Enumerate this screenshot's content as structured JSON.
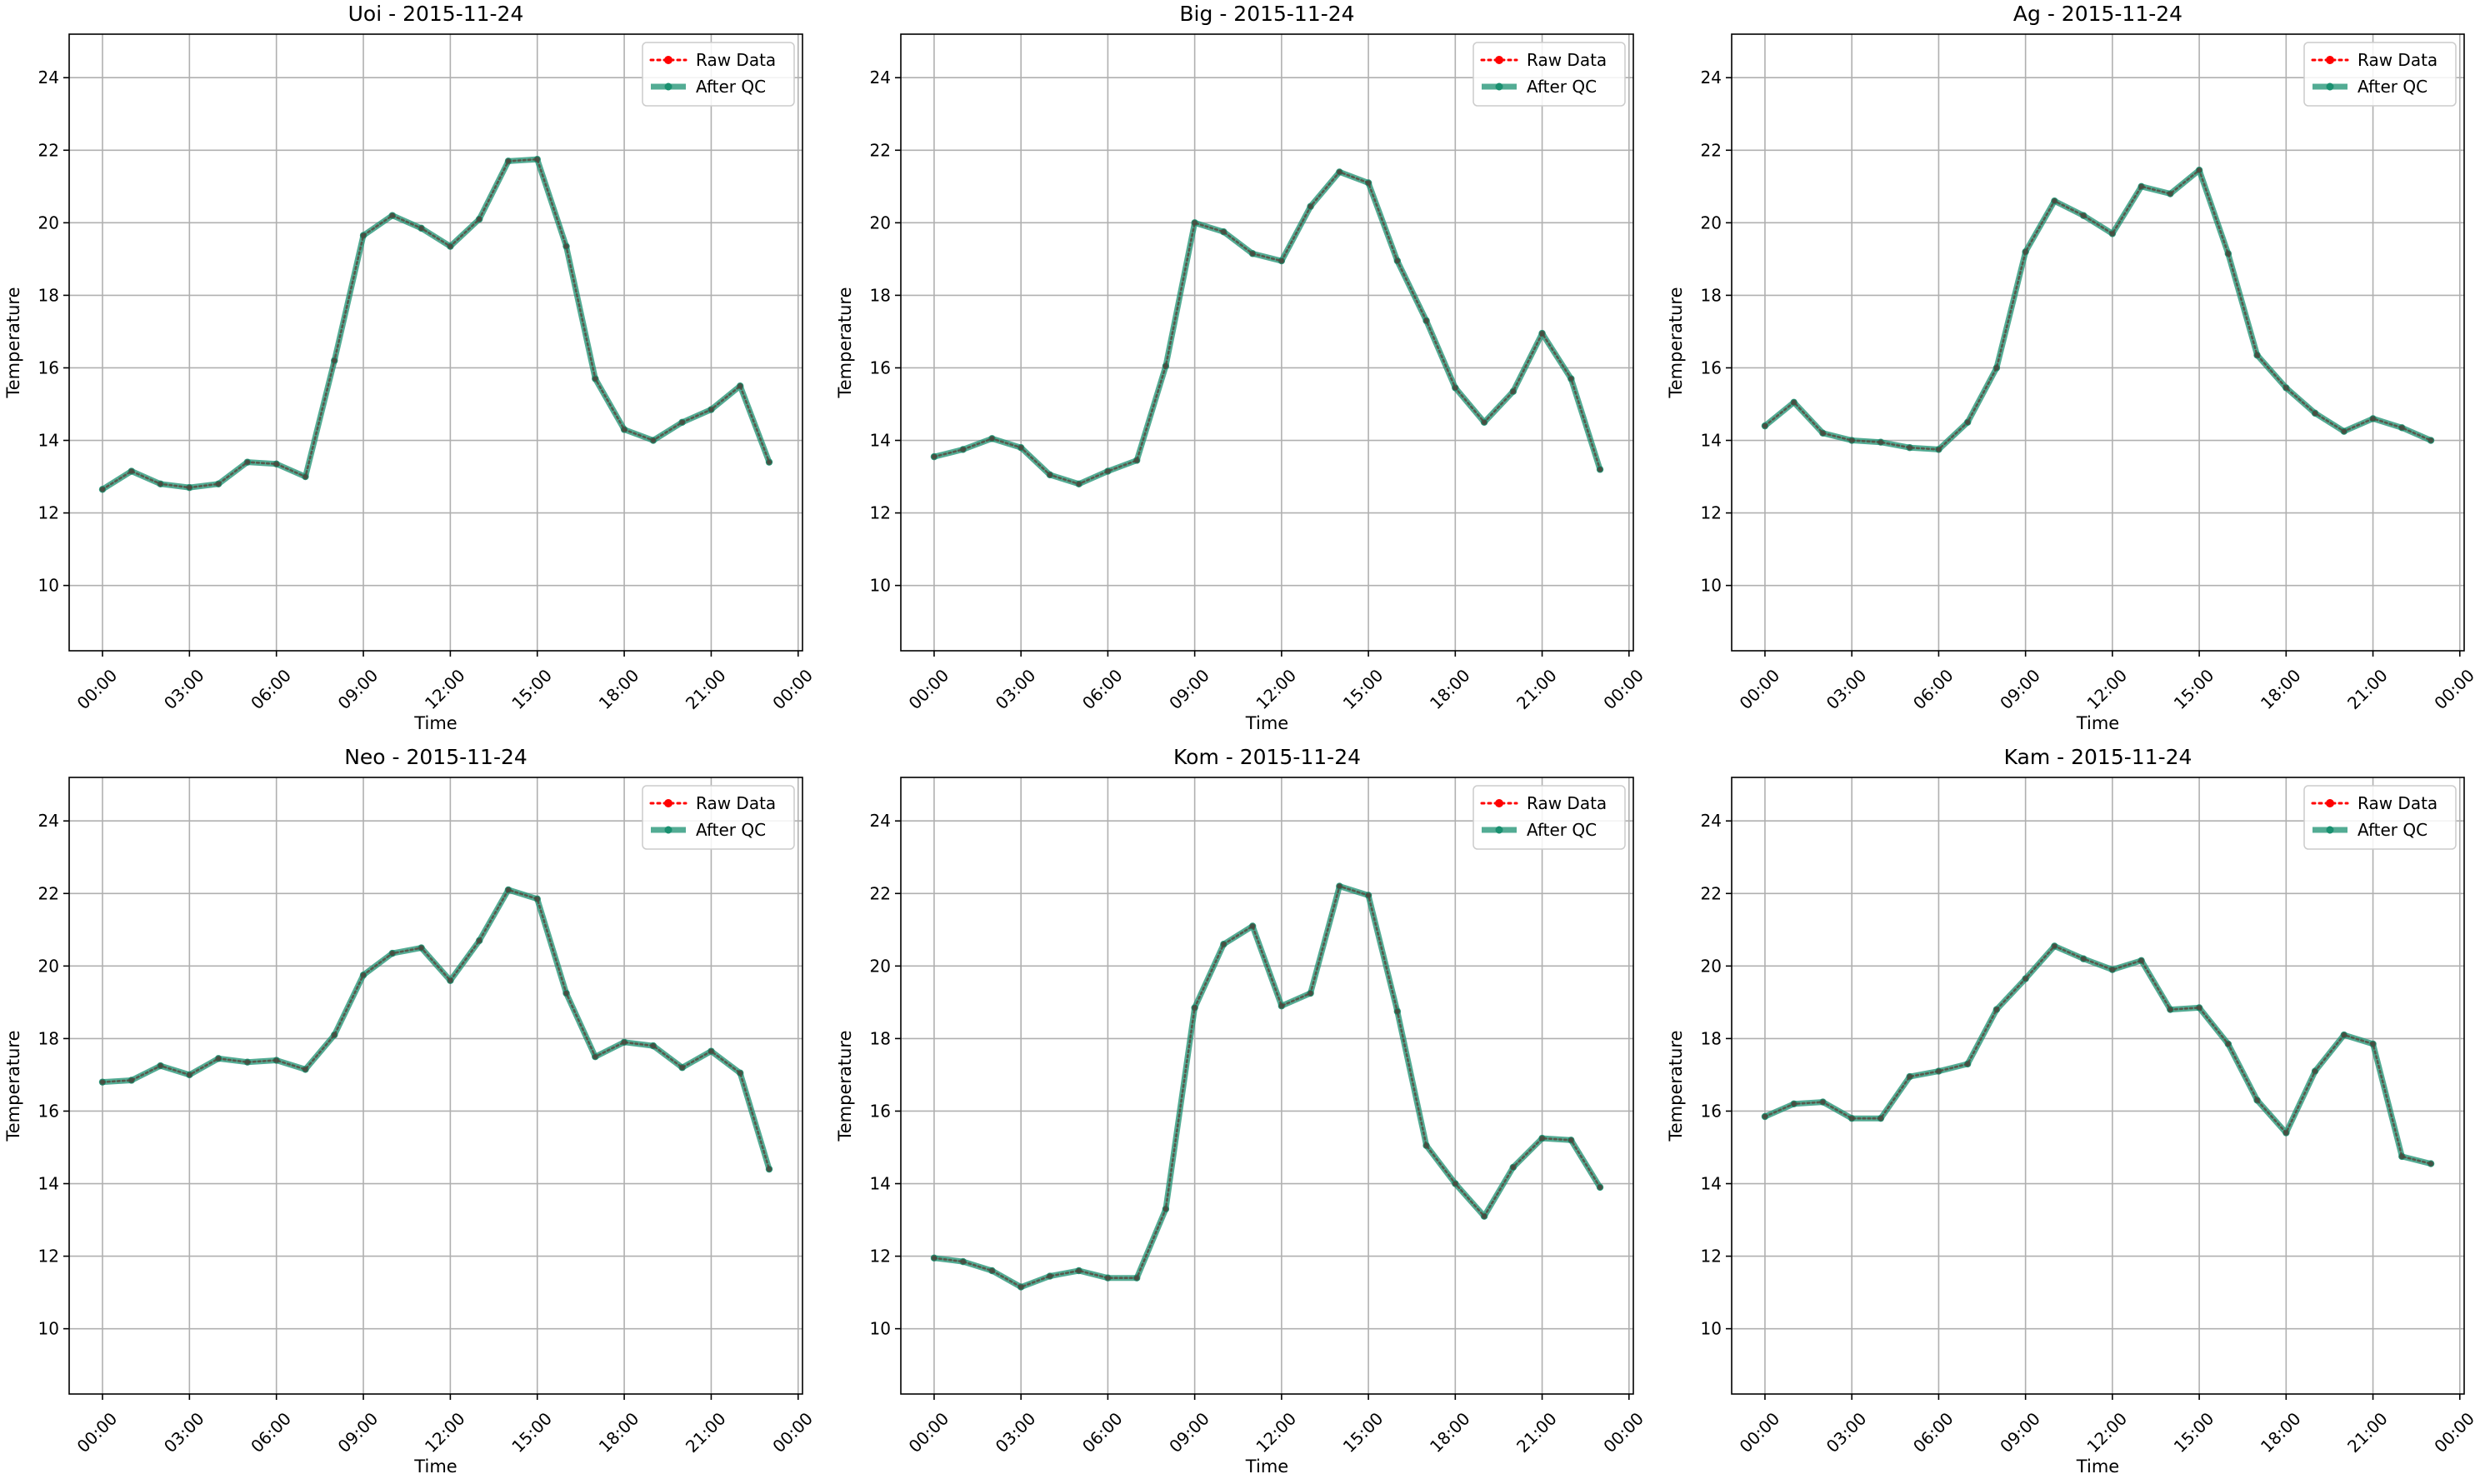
{
  "chart_data": [
    {
      "type": "line",
      "title": "Uoi - 2015-11-24",
      "xlabel": "Time",
      "ylabel": "Temperature",
      "xticks": [
        "00:00",
        "03:00",
        "06:00",
        "09:00",
        "12:00",
        "15:00",
        "18:00",
        "21:00",
        "00:00"
      ],
      "yticks": [
        10,
        12,
        14,
        16,
        18,
        20,
        22,
        24
      ],
      "xlim_hours": [
        -1.15,
        24.15
      ],
      "ylim": [
        8.2,
        25.2
      ],
      "grid": true,
      "legend": "top-right",
      "x_hours": [
        0,
        1,
        2,
        3,
        4,
        5,
        6,
        7,
        8,
        9,
        10,
        11,
        12,
        13,
        14,
        15,
        16,
        17,
        18,
        19,
        20,
        21,
        22,
        23
      ],
      "series": [
        {
          "name": "Raw Data",
          "color": "#ff0000",
          "style": "dotted",
          "values": [
            12.65,
            13.15,
            12.8,
            12.7,
            12.8,
            13.4,
            13.35,
            13.0,
            16.2,
            19.65,
            20.2,
            19.85,
            19.35,
            20.1,
            21.7,
            21.75,
            19.35,
            15.7,
            14.3,
            14.0,
            14.5,
            14.85,
            15.5,
            13.4
          ]
        },
        {
          "name": "After QC",
          "color": "#1a9070",
          "style": "solid",
          "values": [
            12.65,
            13.15,
            12.8,
            12.7,
            12.8,
            13.4,
            13.35,
            13.0,
            16.2,
            19.65,
            20.2,
            19.85,
            19.35,
            20.1,
            21.7,
            21.75,
            19.35,
            15.7,
            14.3,
            14.0,
            14.5,
            14.85,
            15.5,
            13.4
          ]
        }
      ]
    },
    {
      "type": "line",
      "title": "Big - 2015-11-24",
      "xlabel": "Time",
      "ylabel": "Temperature",
      "xticks": [
        "00:00",
        "03:00",
        "06:00",
        "09:00",
        "12:00",
        "15:00",
        "18:00",
        "21:00",
        "00:00"
      ],
      "yticks": [
        10,
        12,
        14,
        16,
        18,
        20,
        22,
        24
      ],
      "xlim_hours": [
        -1.15,
        24.15
      ],
      "ylim": [
        8.2,
        25.2
      ],
      "grid": true,
      "legend": "top-right",
      "x_hours": [
        0,
        1,
        2,
        3,
        4,
        5,
        6,
        7,
        8,
        9,
        10,
        11,
        12,
        13,
        14,
        15,
        16,
        17,
        18,
        19,
        20,
        21,
        22,
        23
      ],
      "series": [
        {
          "name": "Raw Data",
          "color": "#ff0000",
          "style": "dotted",
          "values": [
            13.55,
            13.75,
            14.05,
            13.8,
            13.05,
            12.8,
            13.15,
            13.45,
            16.05,
            20.0,
            19.75,
            19.15,
            18.95,
            20.45,
            21.4,
            21.1,
            18.95,
            17.3,
            15.45,
            14.5,
            15.35,
            16.95,
            15.7,
            13.2
          ]
        },
        {
          "name": "After QC",
          "color": "#1a9070",
          "style": "solid",
          "values": [
            13.55,
            13.75,
            14.05,
            13.8,
            13.05,
            12.8,
            13.15,
            13.45,
            16.05,
            20.0,
            19.75,
            19.15,
            18.95,
            20.45,
            21.4,
            21.1,
            18.95,
            17.3,
            15.45,
            14.5,
            15.35,
            16.95,
            15.7,
            13.2
          ]
        }
      ]
    },
    {
      "type": "line",
      "title": "Ag - 2015-11-24",
      "xlabel": "Time",
      "ylabel": "Temperature",
      "xticks": [
        "00:00",
        "03:00",
        "06:00",
        "09:00",
        "12:00",
        "15:00",
        "18:00",
        "21:00",
        "00:00"
      ],
      "yticks": [
        10,
        12,
        14,
        16,
        18,
        20,
        22,
        24
      ],
      "xlim_hours": [
        -1.15,
        24.15
      ],
      "ylim": [
        8.2,
        25.2
      ],
      "grid": true,
      "legend": "top-right",
      "x_hours": [
        0,
        1,
        2,
        3,
        4,
        5,
        6,
        7,
        8,
        9,
        10,
        11,
        12,
        13,
        14,
        15,
        16,
        17,
        18,
        19,
        20,
        21,
        22,
        23
      ],
      "series": [
        {
          "name": "Raw Data",
          "color": "#ff0000",
          "style": "dotted",
          "values": [
            14.4,
            15.05,
            14.2,
            14.0,
            13.95,
            13.8,
            13.75,
            14.5,
            16.0,
            19.2,
            20.6,
            20.2,
            19.7,
            21.0,
            20.8,
            21.45,
            19.15,
            16.35,
            15.45,
            14.75,
            14.25,
            14.6,
            14.35,
            14.0
          ]
        },
        {
          "name": "After QC",
          "color": "#1a9070",
          "style": "solid",
          "values": [
            14.4,
            15.05,
            14.2,
            14.0,
            13.95,
            13.8,
            13.75,
            14.5,
            16.0,
            19.2,
            20.6,
            20.2,
            19.7,
            21.0,
            20.8,
            21.45,
            19.15,
            16.35,
            15.45,
            14.75,
            14.25,
            14.6,
            14.35,
            14.0
          ]
        }
      ]
    },
    {
      "type": "line",
      "title": "Neo - 2015-11-24",
      "xlabel": "Time",
      "ylabel": "Temperature",
      "xticks": [
        "00:00",
        "03:00",
        "06:00",
        "09:00",
        "12:00",
        "15:00",
        "18:00",
        "21:00",
        "00:00"
      ],
      "yticks": [
        10,
        12,
        14,
        16,
        18,
        20,
        22,
        24
      ],
      "xlim_hours": [
        -1.15,
        24.15
      ],
      "ylim": [
        8.2,
        25.2
      ],
      "grid": true,
      "legend": "top-right",
      "x_hours": [
        0,
        1,
        2,
        3,
        4,
        5,
        6,
        7,
        8,
        9,
        10,
        11,
        12,
        13,
        14,
        15,
        16,
        17,
        18,
        19,
        20,
        21,
        22,
        23
      ],
      "series": [
        {
          "name": "Raw Data",
          "color": "#ff0000",
          "style": "dotted",
          "values": [
            16.8,
            16.85,
            17.25,
            17.0,
            17.45,
            17.35,
            17.4,
            17.15,
            18.1,
            19.75,
            20.35,
            20.5,
            19.6,
            20.7,
            22.1,
            21.85,
            19.25,
            17.5,
            17.9,
            17.8,
            17.2,
            17.65,
            17.05,
            14.4
          ]
        },
        {
          "name": "After QC",
          "color": "#1a9070",
          "style": "solid",
          "values": [
            16.8,
            16.85,
            17.25,
            17.0,
            17.45,
            17.35,
            17.4,
            17.15,
            18.1,
            19.75,
            20.35,
            20.5,
            19.6,
            20.7,
            22.1,
            21.85,
            19.25,
            17.5,
            17.9,
            17.8,
            17.2,
            17.65,
            17.05,
            14.4
          ]
        }
      ]
    },
    {
      "type": "line",
      "title": "Kom - 2015-11-24",
      "xlabel": "Time",
      "ylabel": "Temperature",
      "xticks": [
        "00:00",
        "03:00",
        "06:00",
        "09:00",
        "12:00",
        "15:00",
        "18:00",
        "21:00",
        "00:00"
      ],
      "yticks": [
        10,
        12,
        14,
        16,
        18,
        20,
        22,
        24
      ],
      "xlim_hours": [
        -1.15,
        24.15
      ],
      "ylim": [
        8.2,
        25.2
      ],
      "grid": true,
      "legend": "top-right",
      "x_hours": [
        0,
        1,
        2,
        3,
        4,
        5,
        6,
        7,
        8,
        9,
        10,
        11,
        12,
        13,
        14,
        15,
        16,
        17,
        18,
        19,
        20,
        21,
        22,
        23
      ],
      "series": [
        {
          "name": "Raw Data",
          "color": "#ff0000",
          "style": "dotted",
          "values": [
            11.95,
            11.85,
            11.6,
            11.15,
            11.45,
            11.6,
            11.4,
            11.4,
            13.3,
            18.85,
            20.6,
            21.1,
            18.9,
            19.25,
            22.2,
            21.95,
            18.75,
            15.05,
            14.0,
            13.1,
            14.45,
            15.25,
            15.2,
            13.9
          ]
        },
        {
          "name": "After QC",
          "color": "#1a9070",
          "style": "solid",
          "values": [
            11.95,
            11.85,
            11.6,
            11.15,
            11.45,
            11.6,
            11.4,
            11.4,
            13.3,
            18.85,
            20.6,
            21.1,
            18.9,
            19.25,
            22.2,
            21.95,
            18.75,
            15.05,
            14.0,
            13.1,
            14.45,
            15.25,
            15.2,
            13.9
          ]
        }
      ]
    },
    {
      "type": "line",
      "title": "Kam - 2015-11-24",
      "xlabel": "Time",
      "ylabel": "Temperature",
      "xticks": [
        "00:00",
        "03:00",
        "06:00",
        "09:00",
        "12:00",
        "15:00",
        "18:00",
        "21:00",
        "00:00"
      ],
      "yticks": [
        10,
        12,
        14,
        16,
        18,
        20,
        22,
        24
      ],
      "xlim_hours": [
        -1.15,
        24.15
      ],
      "ylim": [
        8.2,
        25.2
      ],
      "grid": true,
      "legend": "top-right",
      "x_hours": [
        0,
        1,
        2,
        3,
        4,
        5,
        6,
        7,
        8,
        9,
        10,
        11,
        12,
        13,
        14,
        15,
        16,
        17,
        18,
        19,
        20,
        21,
        22,
        23
      ],
      "series": [
        {
          "name": "Raw Data",
          "color": "#ff0000",
          "style": "dotted",
          "values": [
            15.85,
            16.2,
            16.25,
            15.8,
            15.8,
            16.95,
            17.1,
            17.3,
            18.8,
            19.65,
            20.55,
            20.2,
            19.9,
            20.15,
            18.8,
            18.85,
            17.85,
            16.3,
            15.4,
            17.1,
            18.1,
            17.85,
            14.75,
            14.55
          ]
        },
        {
          "name": "After QC",
          "color": "#1a9070",
          "style": "solid",
          "values": [
            15.85,
            16.2,
            16.25,
            15.8,
            15.8,
            16.95,
            17.1,
            17.3,
            18.8,
            19.65,
            20.55,
            20.2,
            19.9,
            20.15,
            18.8,
            18.85,
            17.85,
            16.3,
            15.4,
            17.1,
            18.1,
            17.85,
            14.75,
            14.55
          ]
        }
      ]
    }
  ]
}
